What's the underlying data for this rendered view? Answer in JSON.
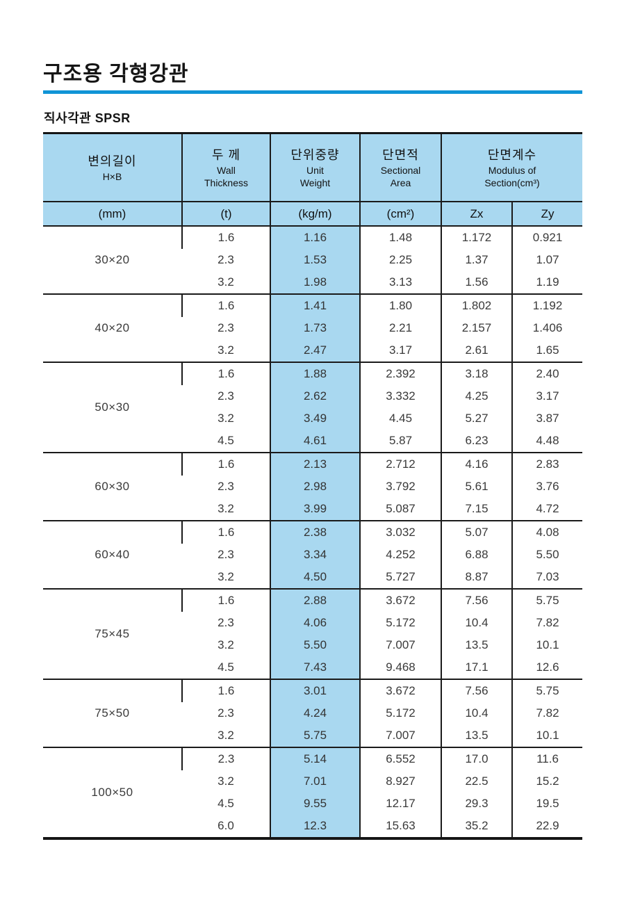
{
  "page": {
    "title": "구조용 각형강관",
    "section_label": "직사각관 SPSR"
  },
  "colors": {
    "accent_rule": "#1094d6",
    "table_header_bg": "#a9d8f0",
    "highlight_column_bg": "#a9d8f0"
  },
  "table": {
    "header": {
      "side_length": {
        "ko": "변의길이",
        "en": "H×B"
      },
      "thickness": {
        "ko": "두 께",
        "en1": "Wall",
        "en2": "Thickness"
      },
      "unit_weight": {
        "ko": "단위중량",
        "en1": "Unit",
        "en2": "Weight"
      },
      "sectional_area": {
        "ko": "단면적",
        "en1": "Sectional",
        "en2": "Area"
      },
      "modulus": {
        "ko": "단면계수",
        "en1": "Modulus of",
        "en2": "Section(cm³)"
      }
    },
    "subheader": {
      "mm": "(mm)",
      "t": "(t)",
      "kgm": "(kg/m)",
      "cm2": "(cm²)",
      "zx": "Zx",
      "zy": "Zy"
    },
    "groups": [
      {
        "size": "30×20",
        "rows": [
          [
            "1.6",
            "1.16",
            "1.48",
            "1.172",
            "0.921"
          ],
          [
            "2.3",
            "1.53",
            "2.25",
            "1.37",
            "1.07"
          ],
          [
            "3.2",
            "1.98",
            "3.13",
            "1.56",
            "1.19"
          ]
        ]
      },
      {
        "size": "40×20",
        "rows": [
          [
            "1.6",
            "1.41",
            "1.80",
            "1.802",
            "1.192"
          ],
          [
            "2.3",
            "1.73",
            "2.21",
            "2.157",
            "1.406"
          ],
          [
            "3.2",
            "2.47",
            "3.17",
            "2.61",
            "1.65"
          ]
        ]
      },
      {
        "size": "50×30",
        "rows": [
          [
            "1.6",
            "1.88",
            "2.392",
            "3.18",
            "2.40"
          ],
          [
            "2.3",
            "2.62",
            "3.332",
            "4.25",
            "3.17"
          ],
          [
            "3.2",
            "3.49",
            "4.45",
            "5.27",
            "3.87"
          ],
          [
            "4.5",
            "4.61",
            "5.87",
            "6.23",
            "4.48"
          ]
        ]
      },
      {
        "size": "60×30",
        "rows": [
          [
            "1.6",
            "2.13",
            "2.712",
            "4.16",
            "2.83"
          ],
          [
            "2.3",
            "2.98",
            "3.792",
            "5.61",
            "3.76"
          ],
          [
            "3.2",
            "3.99",
            "5.087",
            "7.15",
            "4.72"
          ]
        ]
      },
      {
        "size": "60×40",
        "rows": [
          [
            "1.6",
            "2.38",
            "3.032",
            "5.07",
            "4.08"
          ],
          [
            "2.3",
            "3.34",
            "4.252",
            "6.88",
            "5.50"
          ],
          [
            "3.2",
            "4.50",
            "5.727",
            "8.87",
            "7.03"
          ]
        ]
      },
      {
        "size": "75×45",
        "rows": [
          [
            "1.6",
            "2.88",
            "3.672",
            "7.56",
            "5.75"
          ],
          [
            "2.3",
            "4.06",
            "5.172",
            "10.4",
            "7.82"
          ],
          [
            "3.2",
            "5.50",
            "7.007",
            "13.5",
            "10.1"
          ],
          [
            "4.5",
            "7.43",
            "9.468",
            "17.1",
            "12.6"
          ]
        ]
      },
      {
        "size": "75×50",
        "rows": [
          [
            "1.6",
            "3.01",
            "3.672",
            "7.56",
            "5.75"
          ],
          [
            "2.3",
            "4.24",
            "5.172",
            "10.4",
            "7.82"
          ],
          [
            "3.2",
            "5.75",
            "7.007",
            "13.5",
            "10.1"
          ]
        ]
      },
      {
        "size": "100×50",
        "rows": [
          [
            "2.3",
            "5.14",
            "6.552",
            "17.0",
            "11.6"
          ],
          [
            "3.2",
            "7.01",
            "8.927",
            "22.5",
            "15.2"
          ],
          [
            "4.5",
            "9.55",
            "12.17",
            "29.3",
            "19.5"
          ],
          [
            "6.0",
            "12.3",
            "15.63",
            "35.2",
            "22.9"
          ]
        ]
      }
    ]
  }
}
